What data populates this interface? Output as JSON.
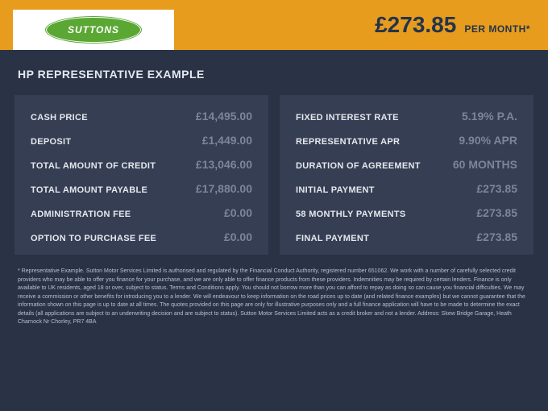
{
  "colors": {
    "page_bg": "#2a3346",
    "topbar_bg": "#e79c1e",
    "card_bg": "#353e52",
    "label_color": "#e4e8ef",
    "value_color": "#7d8698",
    "price_color": "#24344a",
    "logo_bg": "#ffffff",
    "logo_ellipse": "#5aa733"
  },
  "logo": {
    "text": "SUTTONS"
  },
  "price": {
    "amount": "£273.85",
    "period": "PER MONTH*"
  },
  "heading": "HP REPRESENTATIVE EXAMPLE",
  "left": {
    "r0": {
      "label": "CASH PRICE",
      "value": "£14,495.00"
    },
    "r1": {
      "label": "DEPOSIT",
      "value": "£1,449.00"
    },
    "r2": {
      "label": "TOTAL AMOUNT OF CREDIT",
      "value": "£13,046.00"
    },
    "r3": {
      "label": "TOTAL AMOUNT PAYABLE",
      "value": "£17,880.00"
    },
    "r4": {
      "label": "ADMINISTRATION FEE",
      "value": "£0.00"
    },
    "r5": {
      "label": "OPTION TO PURCHASE FEE",
      "value": "£0.00"
    }
  },
  "right": {
    "r0": {
      "label": "FIXED INTEREST RATE",
      "value": "5.19% P.A."
    },
    "r1": {
      "label": "REPRESENTATIVE APR",
      "value": "9.90% APR"
    },
    "r2": {
      "label": "DURATION OF AGREEMENT",
      "value": "60 MONTHS"
    },
    "r3": {
      "label": "INITIAL PAYMENT",
      "value": "£273.85"
    },
    "r4": {
      "label": "58 MONTHLY PAYMENTS",
      "value": "£273.85"
    },
    "r5": {
      "label": "FINAL PAYMENT",
      "value": "£273.85"
    }
  },
  "disclaimer": "* Representative Example. Sutton Motor Services Limited is authorised and regulated by the Financial Conduct Authority, registered number 651062. We work with a number of carefully selected credit providers who may be able to offer you finance for your purchase, and we are only able to offer finance products from these providers. Indemnities may be required by certain lenders. Finance is only available to UK residents, aged 18 or over, subject to status. Terms and Conditions apply. You should not borrow more than you can afford to repay as doing so can cause you financial difficulties. We may receive a commission or other benefits for introducing you to a lender. We will endeavour to keep information on the road prices up to date (and related finance examples) but we cannot guarantee that the information shown on this page is up to date at all times. The quotes provided on this page are only for illustrative purposes only and a full finance application will have to be made to determine the exact details (all applications are subject to an underwriting decision and are subject to status). Sutton Motor Services Limited acts as a credit broker and not a lender. Address: Skew Bridge Garage, Heath Charnock Nr Chorley, PR7 4BA"
}
